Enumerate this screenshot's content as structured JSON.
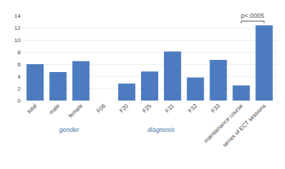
{
  "chart_data": {
    "type": "bar",
    "categories": [
      "total",
      "male",
      "female",
      "F06",
      "F20",
      "F25",
      "F31",
      "F32",
      "F33",
      "maintainance course",
      "series of ECT sessions"
    ],
    "values": [
      6.0,
      4.7,
      6.5,
      null,
      2.8,
      4.8,
      8.1,
      3.8,
      6.7,
      2.5,
      12.4
    ],
    "color": "#4d7bbf",
    "ylim": [
      0,
      14
    ],
    "yticks": [
      0,
      2,
      4,
      6,
      8,
      10,
      12,
      14
    ],
    "grid": true,
    "annotations": [
      {
        "text": "gender",
        "span": [
          "male",
          "female"
        ],
        "color": "#4472a8"
      },
      {
        "text": "diagnosis",
        "span": [
          "F06",
          "F33"
        ],
        "color": "#4472a8"
      },
      {
        "text": "p<.0005",
        "span": [
          "maintainance course",
          "series of ECT sessions"
        ],
        "y": 13.1,
        "color": "#555555"
      }
    ]
  }
}
